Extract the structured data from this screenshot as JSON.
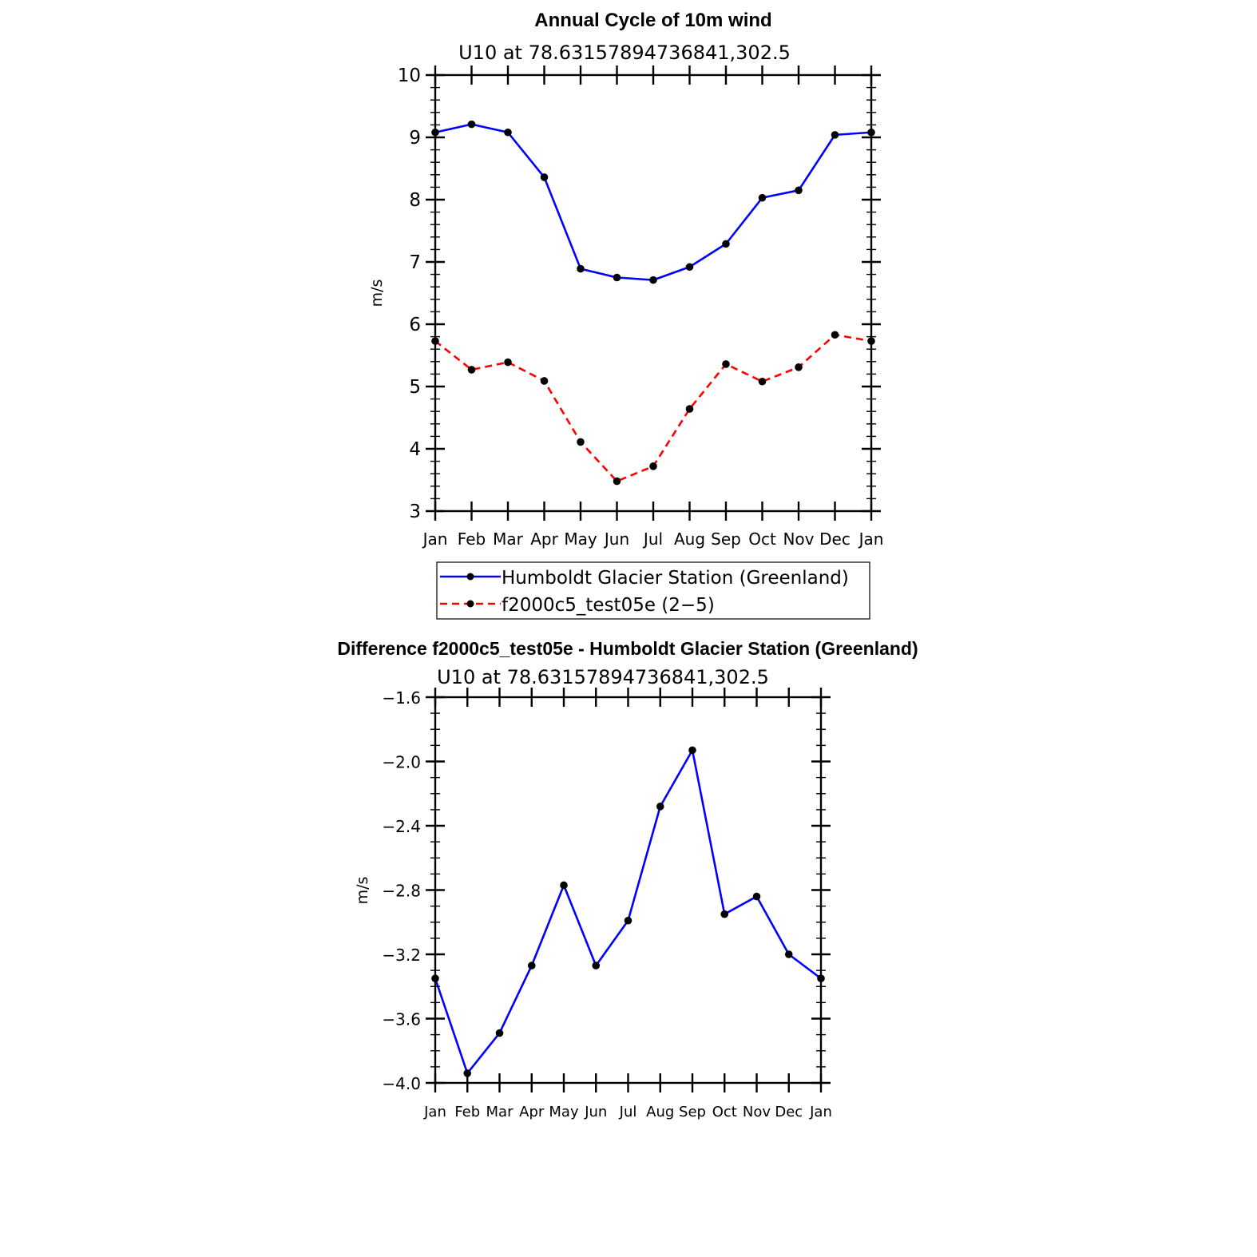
{
  "chart_data": [
    {
      "type": "line",
      "title": "Annual Cycle of 10m wind",
      "subtitle": "U10 at 78.63157894736841,302.5",
      "xlabel": "",
      "ylabel": "m/s",
      "categories": [
        "Jan",
        "Feb",
        "Mar",
        "Apr",
        "May",
        "Jun",
        "Jul",
        "Aug",
        "Sep",
        "Oct",
        "Nov",
        "Dec",
        "Jan"
      ],
      "ylim": [
        3,
        10
      ],
      "yticks": [
        "3",
        "4",
        "5",
        "6",
        "7",
        "8",
        "9",
        "10"
      ],
      "series": [
        {
          "name": "Humboldt Glacier Station (Greenland)",
          "color": "#0000ff",
          "style": "solid",
          "values": [
            9.08,
            9.21,
            9.08,
            8.36,
            6.89,
            6.75,
            6.71,
            6.92,
            7.29,
            8.03,
            8.15,
            9.04,
            9.08
          ]
        },
        {
          "name": "f2000c5_test05e (2−5)",
          "color": "#ff0000",
          "style": "dashed",
          "values": [
            5.73,
            5.27,
            5.39,
            5.09,
            4.11,
            3.48,
            3.72,
            4.64,
            5.36,
            5.08,
            5.31,
            5.83,
            5.73
          ]
        }
      ],
      "legend_position": "below"
    },
    {
      "type": "line",
      "title": "Difference f2000c5_test05e - Humboldt Glacier Station (Greenland)",
      "subtitle": "U10 at 78.63157894736841,302.5",
      "xlabel": "",
      "ylabel": "m/s",
      "categories": [
        "Jan",
        "Feb",
        "Mar",
        "Apr",
        "May",
        "Jun",
        "Jul",
        "Aug",
        "Sep",
        "Oct",
        "Nov",
        "Dec",
        "Jan"
      ],
      "ylim": [
        -4.0,
        -1.6
      ],
      "yticks": [
        "−1.6",
        "−2.0",
        "−2.4",
        "−2.8",
        "−3.2",
        "−3.6",
        "−4.0"
      ],
      "series": [
        {
          "name": "Difference",
          "color": "#0000ff",
          "style": "solid",
          "values": [
            -3.35,
            -3.94,
            -3.69,
            -3.27,
            -2.77,
            -3.27,
            -2.99,
            -2.28,
            -1.93,
            -2.95,
            -2.84,
            -3.2,
            -3.35
          ]
        }
      ]
    }
  ]
}
